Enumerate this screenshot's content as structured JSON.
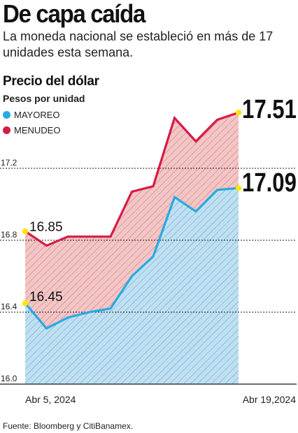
{
  "header": {
    "title": "De capa caída",
    "subtitle": "La moneda nacional se estableció en más de 17 unidades esta semana."
  },
  "colors": {
    "mayoreo": "#29a9e1",
    "menudeo": "#d41c45",
    "mayoreo_fill": "#bfe0f2",
    "menudeo_fill": "#f3c6c6",
    "highlight": "#ffe600"
  },
  "chart_data": {
    "type": "area",
    "title": "Precio del dólar",
    "ylabel": "Pesos por unidad",
    "ylim": [
      16.0,
      17.6
    ],
    "yticks": [
      16.0,
      16.4,
      16.8,
      17.2
    ],
    "ytick_labels": [
      "16.0",
      "16.4",
      "16.8",
      "17.2"
    ],
    "x_labels": [
      "Abr 5, 2024",
      "Abr 19,2024"
    ],
    "series": [
      {
        "name": "MAYOREO",
        "values": [
          16.45,
          16.31,
          16.37,
          16.4,
          16.42,
          16.6,
          16.71,
          17.04,
          16.96,
          17.08,
          17.09
        ]
      },
      {
        "name": "MENUDEO",
        "values": [
          16.85,
          16.77,
          16.82,
          16.82,
          16.82,
          17.07,
          17.1,
          17.48,
          17.35,
          17.47,
          17.51
        ]
      }
    ],
    "annotations": [
      {
        "label": "16.85"
      },
      {
        "label": "16.45"
      },
      {
        "label": "17.51"
      },
      {
        "label": "17.09"
      }
    ],
    "grid": true,
    "legend": "top-left"
  },
  "footer": {
    "source": "Fuente: Bloomberg y CitiBanamex."
  }
}
